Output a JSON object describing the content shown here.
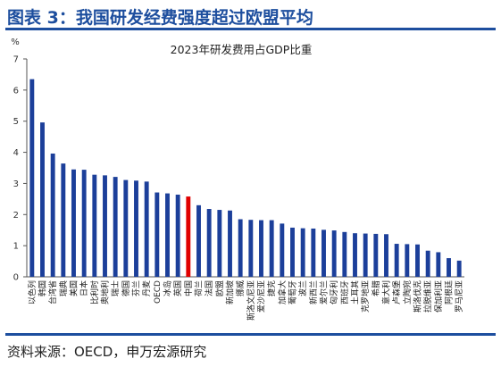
{
  "header": {
    "title": "图表 3：我国研发经费强度超过欧盟平均"
  },
  "footer": {
    "source": "资料来源：OECD，申万宏源研究"
  },
  "colors": {
    "accent": "#1d4e9e",
    "bar": "#1c3f9a",
    "highlight": "#e00000"
  },
  "chart_data": {
    "type": "bar",
    "title": "2023年研发费用占GDP比重",
    "ylabel": "%",
    "xlabel": "",
    "ylim": [
      0,
      7
    ],
    "yticks": [
      0,
      1,
      2,
      3,
      4,
      5,
      6,
      7
    ],
    "grid": false,
    "highlight_category": "中国",
    "categories": [
      "以色列",
      "韩国",
      "台湾省",
      "瑞典",
      "美国",
      "日本",
      "比利时",
      "奥地利",
      "瑞士",
      "德国",
      "芬兰",
      "丹麦",
      "OECD",
      "冰岛",
      "英国",
      "中国",
      "荷兰",
      "法国",
      "欧盟",
      "新加坡",
      "挪威",
      "斯洛文尼亚",
      "爱沙尼亚",
      "捷克",
      "加拿大",
      "葡萄牙",
      "波兰",
      "新西兰",
      "爱尔兰",
      "匈牙利",
      "西班牙",
      "土耳其",
      "克罗地亚",
      "希腊",
      "意大利",
      "卢森堡",
      "立陶宛",
      "斯洛伐克",
      "拉脱维亚",
      "保加利亚",
      "阿根廷",
      "罗马尼亚"
    ],
    "values": [
      6.35,
      4.96,
      3.96,
      3.64,
      3.45,
      3.44,
      3.28,
      3.26,
      3.21,
      3.11,
      3.09,
      3.06,
      2.71,
      2.68,
      2.64,
      2.58,
      2.3,
      2.18,
      2.15,
      2.13,
      1.85,
      1.83,
      1.82,
      1.82,
      1.71,
      1.58,
      1.56,
      1.55,
      1.51,
      1.49,
      1.44,
      1.4,
      1.39,
      1.38,
      1.37,
      1.06,
      1.05,
      1.04,
      0.84,
      0.79,
      0.6,
      0.52
    ]
  }
}
